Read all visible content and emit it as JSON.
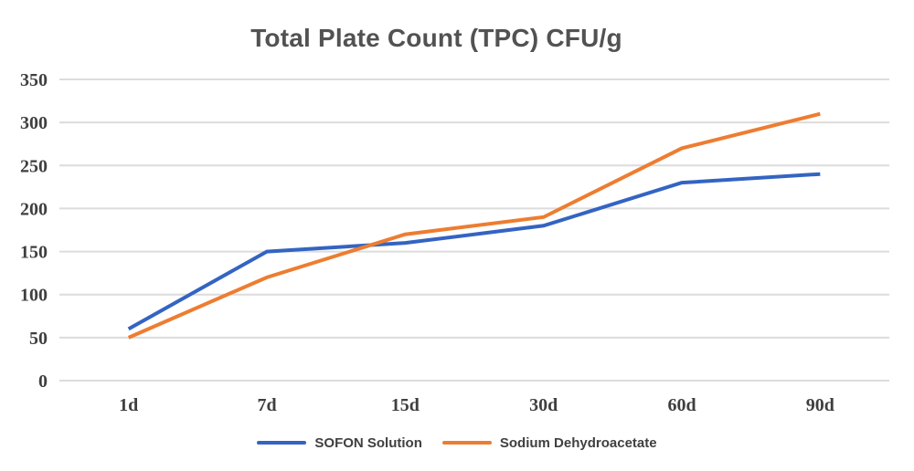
{
  "chart_data": {
    "type": "line",
    "title": "Total Plate Count (TPC) CFU/g",
    "categories": [
      "1d",
      "7d",
      "15d",
      "30d",
      "60d",
      "90d"
    ],
    "series": [
      {
        "name": "SOFON Solution",
        "color": "#3464c2",
        "values": [
          60,
          150,
          160,
          180,
          230,
          240
        ]
      },
      {
        "name": "Sodium Dehydroacetate",
        "color": "#ed7d31",
        "values": [
          50,
          120,
          170,
          190,
          270,
          310
        ]
      }
    ],
    "xlabel": "",
    "ylabel": "",
    "ylim": [
      0,
      350
    ],
    "yticks": [
      0,
      50,
      100,
      150,
      200,
      250,
      300,
      350
    ],
    "grid": "horizontal",
    "legend_position": "bottom",
    "gridline_color": "#dcdcdc",
    "axis_text_color": "#3f3f3f",
    "title_color": "#525252"
  }
}
